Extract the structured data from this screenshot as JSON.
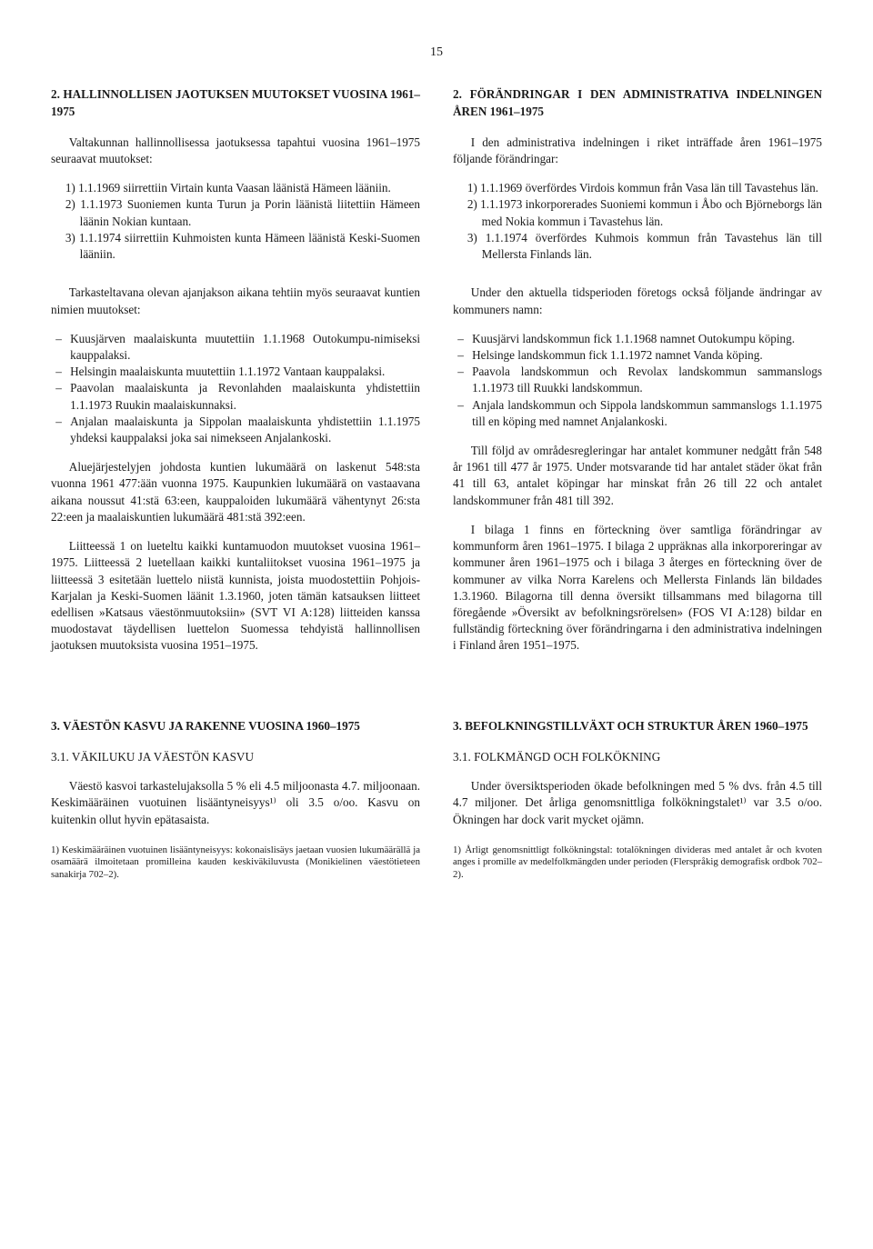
{
  "pageNumber": "15",
  "left": {
    "h1": "2. HALLINNOLLISEN JAOTUKSEN MUUTOKSET VUOSINA 1961–1975",
    "p1": "Valtakunnan hallinnollisessa jaotuksessa tapahtui vuosina 1961–1975 seuraavat muutokset:",
    "ol1": [
      "1) 1.1.1969 siirrettiin Virtain kunta Vaasan läänistä Hämeen lääniin.",
      "2) 1.1.1973 Suoniemen kunta Turun ja Porin läänistä liitettiin Hämeen läänin Nokian kuntaan.",
      "3) 1.1.1974 siirrettiin Kuhmoisten kunta Hämeen läänistä Keski-Suomen lääniin."
    ],
    "p2": "Tarkasteltavana olevan ajanjakson aikana tehtiin myös seuraavat kuntien nimien muutokset:",
    "ul1": [
      "Kuusjärven maalaiskunta muutettiin 1.1.1968 Outokumpu-nimiseksi kauppalaksi.",
      "Helsingin maalaiskunta muutettiin 1.1.1972 Vantaan kauppalaksi.",
      "Paavolan maalaiskunta ja Revonlahden maalaiskunta yhdistettiin 1.1.1973 Ruukin maalaiskunnaksi.",
      "Anjalan maalaiskunta ja Sippolan maalaiskunta yhdistettiin 1.1.1975 yhdeksi kauppalaksi joka sai nimekseen Anjalankoski."
    ],
    "p3": "Aluejärjestelyjen johdosta kuntien lukumäärä on laskenut 548:sta vuonna 1961 477:ään vuonna 1975. Kaupunkien lukumäärä on vastaavana aikana noussut 41:stä 63:een, kauppaloiden lukumäärä vähentynyt 26:sta 22:een ja maalaiskuntien lukumäärä 481:stä 392:een.",
    "p4": "Liitteessä 1 on lueteltu kaikki kuntamuodon muutokset vuosina 1961–1975. Liitteessä 2 luetellaan kaikki kuntaliitokset vuosina 1961–1975 ja liitteessä 3 esitetään luettelo niistä kunnista, joista muodostettiin Pohjois-Karjalan ja Keski-Suomen läänit 1.3.1960, joten tämän katsauksen liitteet edellisen »Katsaus väestönmuutoksiin» (SVT VI A:128) liitteiden kanssa muodostavat täydellisen luettelon Suomessa tehdyistä hallinnollisen jaotuksen muutoksista vuosina 1951–1975.",
    "h2": "3. VÄESTÖN KASVU JA RAKENNE VUOSINA 1960–1975",
    "sub": "3.1. VÄKILUKU JA VÄESTÖN KASVU",
    "p5": "Väestö kasvoi tarkastelujaksolla 5 % eli 4.5 miljoonasta 4.7. miljoonaan. Keskimääräinen vuotuinen lisääntyneisyys¹⁾ oli 3.5 o/oo. Kasvu on kuitenkin ollut hyvin epätasaista.",
    "fn": "1) Keskimääräinen vuotuinen lisääntyneisyys: kokonaislisäys jaetaan vuosien lukumäärällä ja osamäärä ilmoitetaan promilleina kauden keskiväkiluvusta (Monikielinen väestötieteen sanakirja 702–2)."
  },
  "right": {
    "h1": "2. FÖRÄNDRINGAR I DEN ADMINISTRATIVA INDELNINGEN ÅREN 1961–1975",
    "p1": "I den administrativa indelningen i riket inträffade åren 1961–1975 följande förändringar:",
    "ol1": [
      "1) 1.1.1969 överfördes Virdois kommun från Vasa län till Tavastehus län.",
      "2) 1.1.1973 inkorporerades Suoniemi kommun i Åbo och Björneborgs län med Nokia kommun i Tavastehus län.",
      "3) 1.1.1974 överfördes Kuhmois kommun från Tavastehus län till Mellersta Finlands län."
    ],
    "p2": "Under den aktuella tidsperioden företogs också följande ändringar av kommuners namn:",
    "ul1": [
      "Kuusjärvi landskommun fick 1.1.1968 namnet Outokumpu köping.",
      "Helsinge landskommun fick 1.1.1972 namnet Vanda köping.",
      "Paavola landskommun och Revolax landskommun sammanslogs 1.1.1973 till Ruukki landskommun.",
      "Anjala landskommun och Sippola landskommun sammanslogs 1.1.1975 till en köping med namnet Anjalankoski."
    ],
    "p3": "Till följd av områdesregleringar har antalet kommuner nedgått från 548 år 1961 till 477 år 1975. Under motsvarande tid har antalet städer ökat från 41 till 63, antalet köpingar har minskat från 26 till 22 och antalet landskommuner från 481 till 392.",
    "p4": "I bilaga 1 finns en förteckning över samtliga förändringar av kommunform åren 1961–1975. I bilaga 2 uppräknas alla inkorporeringar av kommuner åren 1961–1975 och i bilaga 3 återges en förteckning över de kommuner av vilka Norra Karelens och Mellersta Finlands län bildades 1.3.1960. Bilagorna till denna översikt tillsammans med bilagorna till föregående »Översikt av befolkningsrörelsen» (FOS VI A:128) bildar en fullständig förteckning över förändringarna i den administrativa indelningen i Finland åren 1951–1975.",
    "h2": "3. BEFOLKNINGSTILLVÄXT OCH STRUKTUR ÅREN 1960–1975",
    "sub": "3.1. FOLKMÄNGD OCH FOLKÖKNING",
    "p5": "Under översiktsperioden ökade befolkningen med 5 % dvs. från 4.5 till 4.7 miljoner. Det årliga genomsnittliga folkökningstalet¹⁾ var 3.5 o/oo. Ökningen har dock varit mycket ojämn.",
    "fn": "1) Årligt genomsnittligt folkökningstal: totalökningen divideras med antalet år och kvoten anges i promille av medelfolkmängden under perioden (Flerspråkig demografisk ordbok 702–2)."
  }
}
